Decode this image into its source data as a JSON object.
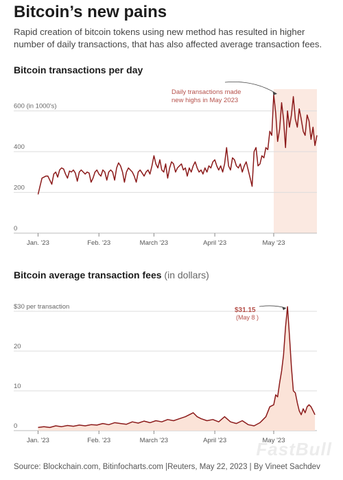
{
  "header": {
    "title": "Bitcoin’s new pains",
    "subtitle": "Rapid creation of bitcoin tokens using new method has resulted in higher number of daily transactions, that has also affected average transaction fees."
  },
  "colors": {
    "line": "#8b1a1a",
    "highlight": "#fbe9e1",
    "fee_area": "#fbe3d8",
    "annotation": "#b5504a",
    "grid": "#dcdcdc"
  },
  "chart_data": [
    {
      "type": "line",
      "title": "Bitcoin transactions per day",
      "y_unit_label": "600 (in 1000's)",
      "ylim": [
        0,
        700
      ],
      "y_ticks": [
        0,
        200,
        400,
        600
      ],
      "y_tick_labels": [
        "0",
        "200",
        "400",
        "600 (in 1000's)"
      ],
      "x_tick_labels": [
        "Jan. '23",
        "Feb. '23",
        "March '23",
        "April '23",
        "May '23"
      ],
      "x_tick_days": [
        0,
        31,
        59,
        90,
        120
      ],
      "x_range_days": [
        -4,
        142
      ],
      "highlight_days": [
        120,
        142
      ],
      "annotation": {
        "text": [
          "Daily transactions made",
          "new highs in May 2023"
        ],
        "day": 123,
        "value": 670
      },
      "series": [
        {
          "values": [
            [
              0,
              190
            ],
            [
              1,
              230
            ],
            [
              2,
              270
            ],
            [
              3,
              275
            ],
            [
              4,
              280
            ],
            [
              5,
              280
            ],
            [
              6,
              260
            ],
            [
              7,
              240
            ],
            [
              8,
              290
            ],
            [
              9,
              300
            ],
            [
              10,
              275
            ],
            [
              11,
              310
            ],
            [
              12,
              320
            ],
            [
              13,
              315
            ],
            [
              14,
              290
            ],
            [
              15,
              270
            ],
            [
              16,
              305
            ],
            [
              17,
              300
            ],
            [
              18,
              310
            ],
            [
              19,
              295
            ],
            [
              20,
              255
            ],
            [
              21,
              300
            ],
            [
              22,
              310
            ],
            [
              23,
              300
            ],
            [
              24,
              290
            ],
            [
              25,
              300
            ],
            [
              26,
              295
            ],
            [
              27,
              250
            ],
            [
              28,
              270
            ],
            [
              29,
              300
            ],
            [
              30,
              310
            ],
            [
              31,
              290
            ],
            [
              32,
              280
            ],
            [
              33,
              310
            ],
            [
              34,
              300
            ],
            [
              35,
              260
            ],
            [
              36,
              300
            ],
            [
              37,
              310
            ],
            [
              38,
              300
            ],
            [
              39,
              260
            ],
            [
              40,
              320
            ],
            [
              41,
              345
            ],
            [
              42,
              330
            ],
            [
              43,
              300
            ],
            [
              44,
              250
            ],
            [
              45,
              300
            ],
            [
              46,
              320
            ],
            [
              47,
              310
            ],
            [
              48,
              300
            ],
            [
              49,
              280
            ],
            [
              50,
              250
            ],
            [
              51,
              300
            ],
            [
              52,
              310
            ],
            [
              53,
              295
            ],
            [
              54,
              280
            ],
            [
              55,
              300
            ],
            [
              56,
              310
            ],
            [
              57,
              290
            ],
            [
              58,
              330
            ],
            [
              59,
              380
            ],
            [
              60,
              340
            ],
            [
              61,
              320
            ],
            [
              62,
              360
            ],
            [
              63,
              310
            ],
            [
              64,
              300
            ],
            [
              65,
              340
            ],
            [
              66,
              270
            ],
            [
              67,
              320
            ],
            [
              68,
              350
            ],
            [
              69,
              340
            ],
            [
              70,
              300
            ],
            [
              71,
              320
            ],
            [
              72,
              330
            ],
            [
              73,
              340
            ],
            [
              74,
              310
            ],
            [
              75,
              320
            ],
            [
              76,
              280
            ],
            [
              77,
              320
            ],
            [
              78,
              300
            ],
            [
              79,
              330
            ],
            [
              80,
              350
            ],
            [
              81,
              320
            ],
            [
              82,
              300
            ],
            [
              83,
              310
            ],
            [
              84,
              290
            ],
            [
              85,
              320
            ],
            [
              86,
              300
            ],
            [
              87,
              330
            ],
            [
              88,
              320
            ],
            [
              89,
              350
            ],
            [
              90,
              360
            ],
            [
              91,
              330
            ],
            [
              92,
              310
            ],
            [
              93,
              330
            ],
            [
              94,
              300
            ],
            [
              95,
              340
            ],
            [
              96,
              420
            ],
            [
              97,
              330
            ],
            [
              98,
              310
            ],
            [
              99,
              370
            ],
            [
              100,
              360
            ],
            [
              101,
              330
            ],
            [
              102,
              320
            ],
            [
              103,
              340
            ],
            [
              104,
              300
            ],
            [
              105,
              330
            ],
            [
              106,
              350
            ],
            [
              107,
              310
            ],
            [
              108,
              270
            ],
            [
              109,
              230
            ],
            [
              110,
              400
            ],
            [
              111,
              420
            ],
            [
              112,
              330
            ],
            [
              113,
              340
            ],
            [
              114,
              380
            ],
            [
              115,
              370
            ],
            [
              116,
              420
            ],
            [
              117,
              410
            ],
            [
              118,
              500
            ],
            [
              119,
              480
            ],
            [
              120,
              680
            ],
            [
              121,
              590
            ],
            [
              122,
              450
            ],
            [
              123,
              510
            ],
            [
              124,
              640
            ],
            [
              125,
              560
            ],
            [
              126,
              420
            ],
            [
              127,
              600
            ],
            [
              128,
              520
            ],
            [
              129,
              580
            ],
            [
              130,
              670
            ],
            [
              131,
              560
            ],
            [
              132,
              520
            ],
            [
              133,
              610
            ],
            [
              134,
              560
            ],
            [
              135,
              500
            ],
            [
              136,
              480
            ],
            [
              137,
              580
            ],
            [
              138,
              550
            ],
            [
              139,
              460
            ],
            [
              140,
              520
            ],
            [
              141,
              430
            ],
            [
              142,
              480
            ]
          ]
        }
      ]
    },
    {
      "type": "area",
      "title": "Bitcoin average transaction fees",
      "title_unit": "(in dollars)",
      "ylim": [
        0,
        35
      ],
      "y_ticks": [
        0,
        10,
        20,
        30
      ],
      "y_tick_labels": [
        "0",
        "10",
        "20",
        "$30 per transaction"
      ],
      "x_tick_labels": [
        "Jan. '23",
        "Feb. '23",
        "March '23",
        "April '23",
        "May '23"
      ],
      "x_tick_days": [
        0,
        31,
        59,
        90,
        120
      ],
      "x_range_days": [
        -4,
        142
      ],
      "annotation": {
        "value_label": "$31.15",
        "date_label": "(May 8 )",
        "day": 127,
        "value": 31.15
      },
      "series": [
        {
          "values": [
            [
              0,
              0.8
            ],
            [
              3,
              1.0
            ],
            [
              6,
              0.8
            ],
            [
              9,
              1.2
            ],
            [
              12,
              1.0
            ],
            [
              15,
              1.3
            ],
            [
              18,
              1.1
            ],
            [
              21,
              1.4
            ],
            [
              24,
              1.2
            ],
            [
              27,
              1.5
            ],
            [
              30,
              1.4
            ],
            [
              33,
              1.8
            ],
            [
              36,
              1.5
            ],
            [
              39,
              2.0
            ],
            [
              42,
              1.8
            ],
            [
              45,
              1.6
            ],
            [
              48,
              2.2
            ],
            [
              51,
              1.9
            ],
            [
              54,
              2.4
            ],
            [
              57,
              2.0
            ],
            [
              60,
              2.5
            ],
            [
              63,
              2.2
            ],
            [
              66,
              2.8
            ],
            [
              69,
              2.5
            ],
            [
              72,
              3.0
            ],
            [
              75,
              3.5
            ],
            [
              77,
              4.0
            ],
            [
              79,
              4.5
            ],
            [
              81,
              3.5
            ],
            [
              83,
              3.0
            ],
            [
              86,
              2.5
            ],
            [
              89,
              2.8
            ],
            [
              92,
              2.2
            ],
            [
              95,
              3.5
            ],
            [
              98,
              2.2
            ],
            [
              101,
              1.8
            ],
            [
              104,
              2.5
            ],
            [
              107,
              1.5
            ],
            [
              110,
              1.2
            ],
            [
              113,
              2.0
            ],
            [
              116,
              3.5
            ],
            [
              118,
              6.0
            ],
            [
              120,
              6.5
            ],
            [
              121,
              9.0
            ],
            [
              122,
              8.5
            ],
            [
              123,
              12.0
            ],
            [
              124,
              15.0
            ],
            [
              125,
              19.0
            ],
            [
              126,
              26.0
            ],
            [
              127,
              31.15
            ],
            [
              128,
              24.0
            ],
            [
              129,
              16.0
            ],
            [
              130,
              10.0
            ],
            [
              131,
              9.5
            ],
            [
              132,
              7.0
            ],
            [
              133,
              5.0
            ],
            [
              134,
              4.0
            ],
            [
              135,
              5.5
            ],
            [
              136,
              4.5
            ],
            [
              137,
              6.0
            ],
            [
              138,
              6.5
            ],
            [
              139,
              6.0
            ],
            [
              140,
              5.0
            ],
            [
              141,
              4.0
            ]
          ]
        }
      ]
    }
  ],
  "footer": {
    "source": "Source: Blockchain.com, Bitinfocharts.com |Reuters, May 22, 2023 | By Vineet Sachdev"
  },
  "watermark": {
    "text": "FastBull"
  }
}
